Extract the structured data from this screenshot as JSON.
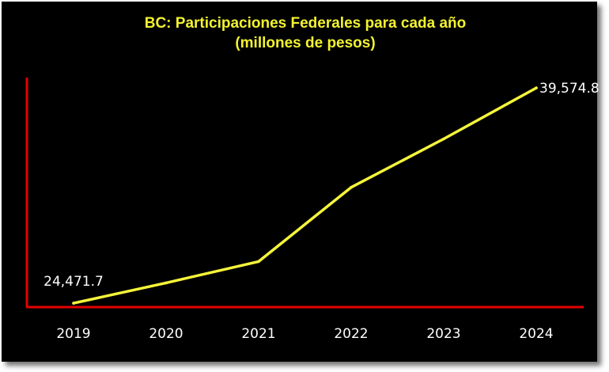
{
  "chart_data": {
    "type": "line",
    "title": "BC: Participaciones Federales para cada año",
    "subtitle": "(millones de pesos)",
    "categories": [
      "2019",
      "2020",
      "2021",
      "2022",
      "2023",
      "2024"
    ],
    "series": [
      {
        "values": [
          24471.7,
          25900,
          27400,
          32600,
          36000,
          39574.8
        ]
      }
    ],
    "data_labels": [
      "24,471.7",
      "",
      "",
      "",
      "",
      "39,574.8"
    ],
    "ylim": [
      24200,
      40300
    ],
    "grid": false,
    "legend": "none",
    "colors": {
      "background": "#000000",
      "line": "#f5f53a",
      "axis": "#e60000",
      "title": "#f2f230",
      "labels": "#ffffff"
    }
  }
}
